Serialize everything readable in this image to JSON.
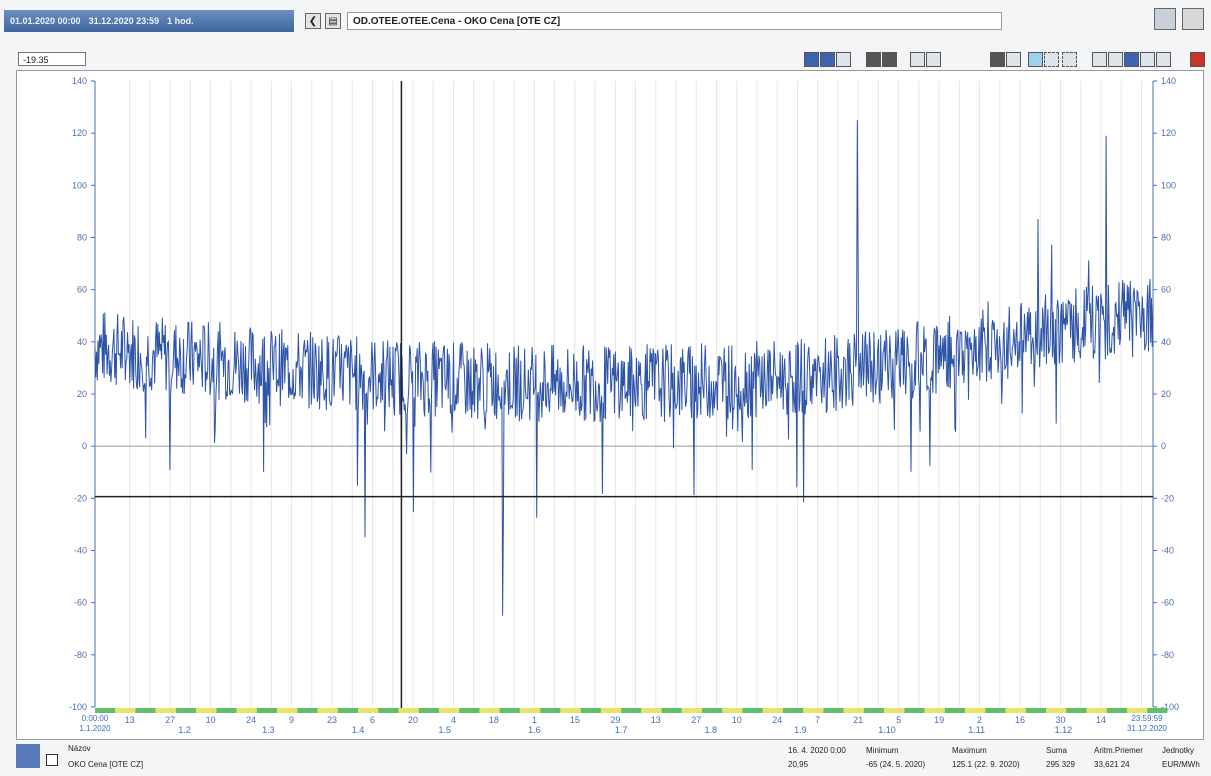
{
  "toolbar": {
    "range_start": "01.01.2020 00:00",
    "range_end": "31.12.2020 23:59",
    "range_step": "1 hod.",
    "series_title": "OD.OTEE.OTEE.Cena - OKO Cena [OTE CZ]",
    "cursor_value": "-19.35"
  },
  "chart_data": {
    "type": "line",
    "ylim": [
      -100,
      140
    ],
    "yticks": [
      -100,
      -80,
      -60,
      -40,
      -20,
      0,
      20,
      40,
      60,
      80,
      100,
      120,
      140
    ],
    "cursor_y": -19.35,
    "cursor_x": "16. 4. 2020 0:00",
    "start_label": [
      "0:00:00",
      "1.1.2020"
    ],
    "end_label": [
      "23:59:59",
      "31.12.2020"
    ],
    "day_ticks": [
      "13",
      "27",
      "10",
      "24",
      "9",
      "23",
      "6",
      "20",
      "4",
      "18",
      "1",
      "15",
      "29",
      "13",
      "27",
      "10",
      "24",
      "7",
      "21",
      "5",
      "19",
      "2",
      "16",
      "30",
      "14"
    ],
    "month_ticks": [
      "1.2",
      "1.3",
      "1.4",
      "1.5",
      "1.6",
      "1.7",
      "1.8",
      "1.9",
      "1.10",
      "1.11",
      "1.12"
    ],
    "colors": {
      "series": "#2e54a8",
      "axis": "#4a6fb3",
      "cursor": "#222222"
    }
  },
  "footer": {
    "name_header": "Názov",
    "series_name": "OKO Cena [OTE CZ]",
    "cursor_time": "16. 4. 2020 0:00",
    "cursor_val": "20,95",
    "min_label": "Minimum",
    "min_value": "-65 (24. 5. 2020)",
    "max_label": "Maximum",
    "max_value": "125.1 (22. 9. 2020)",
    "sum_label": "Suma",
    "sum_value": "295 329",
    "avg_label": "Aritm.Priemer",
    "avg_value": "33,621 24",
    "unit_label": "Jednotky",
    "unit_value": "EUR/MWh"
  }
}
